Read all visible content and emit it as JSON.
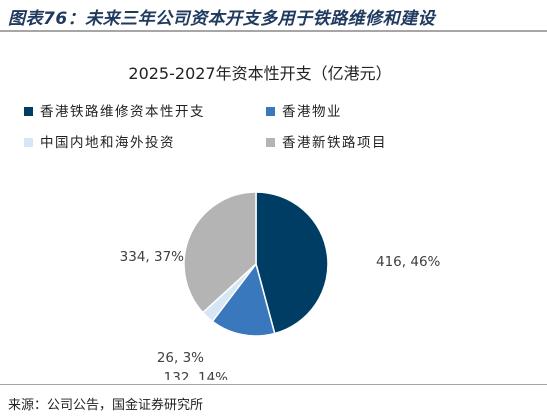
{
  "figure": {
    "title": "图表76：未来三年公司资本开支多用于铁路维修和建设",
    "source": "来源：公司公告，国金证券研究所"
  },
  "chart_data": {
    "type": "pie",
    "title": "2025-2027年资本性开支（亿港元）",
    "legend_placement": "top-left",
    "slices": [
      {
        "name": "香港铁路维修资本性开支",
        "value": 416,
        "percent": 46,
        "label": "416, 46%",
        "color": "#003d64"
      },
      {
        "name": "香港物业",
        "value": 132,
        "percent": 14,
        "label": "132, 14%",
        "color": "#3a78bd"
      },
      {
        "name": "中国内地和海外投资",
        "value": 26,
        "percent": 3,
        "label": "26, 3%",
        "color": "#d6e6f5"
      },
      {
        "name": "香港新铁路项目",
        "value": 334,
        "percent": 37,
        "label": "334, 37%",
        "color": "#b4b4b4"
      }
    ]
  }
}
